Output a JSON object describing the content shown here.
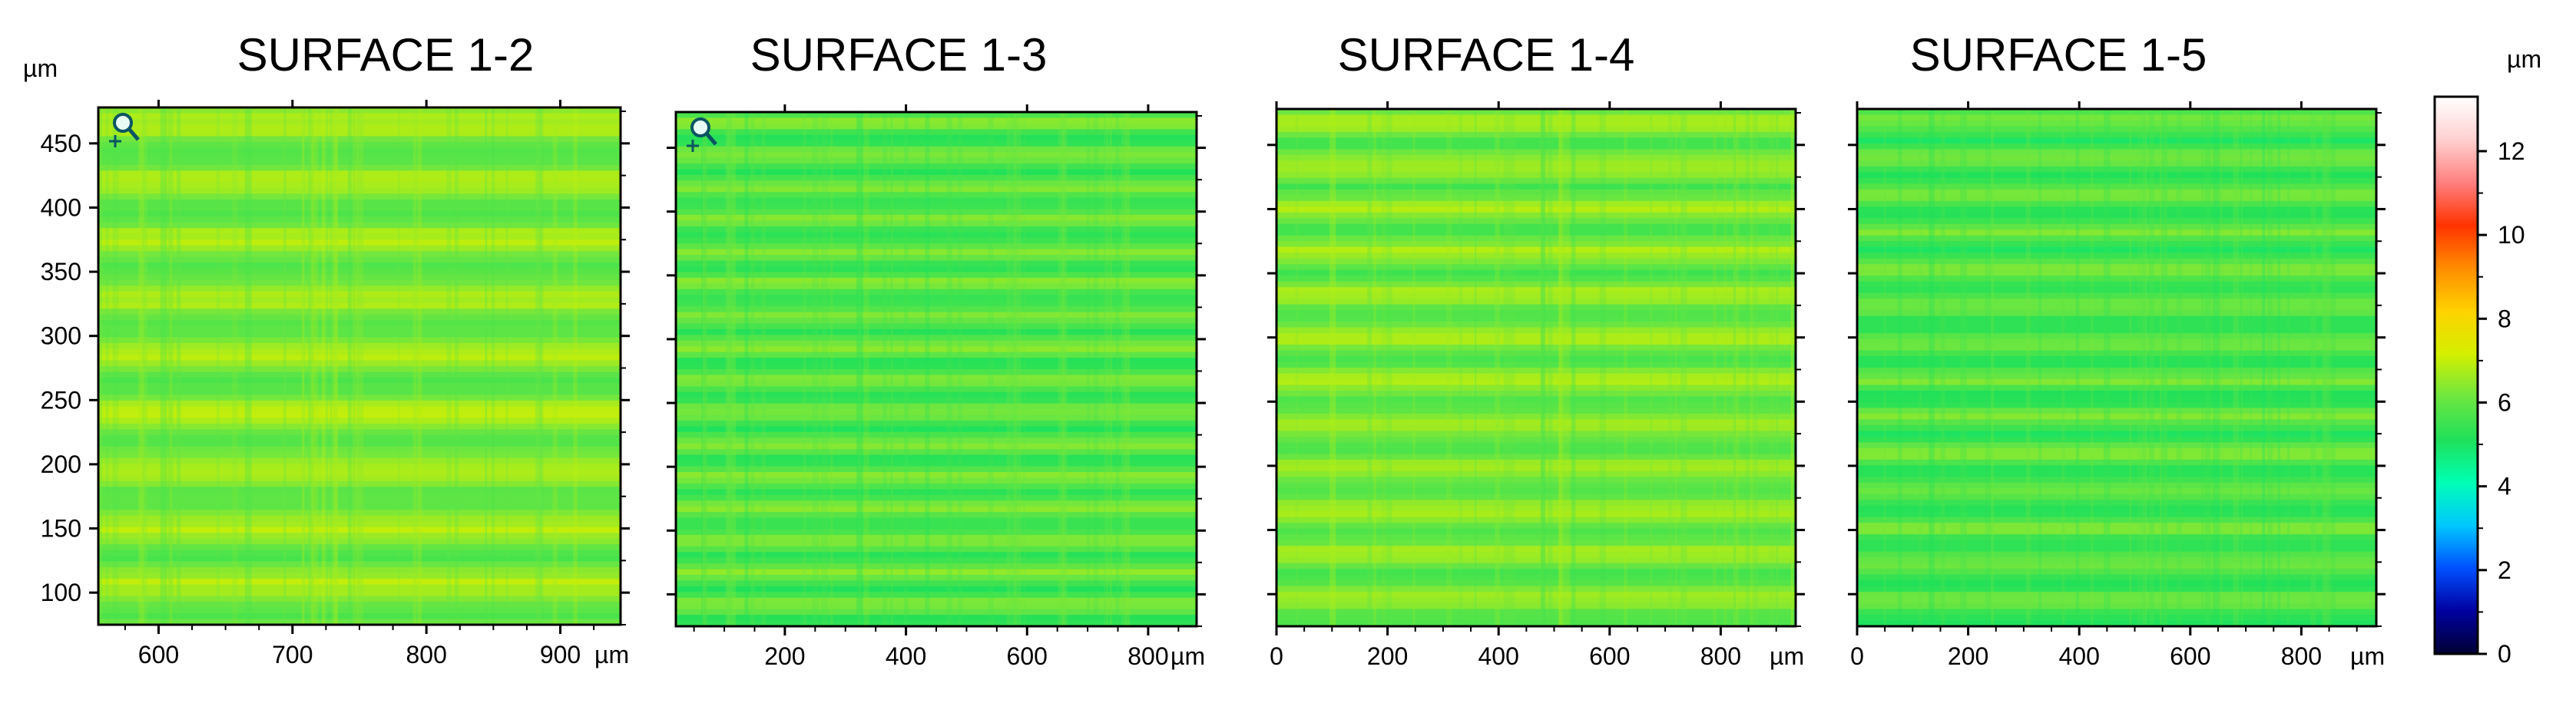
{
  "figure": {
    "left_axis_unit": "µm",
    "colorbar_unit": "µm"
  },
  "chart_data": [
    {
      "type": "heatmap",
      "title": "SURFACE 1-2",
      "x_unit": "µm",
      "y_unit": "µm",
      "xlim": [
        555,
        945
      ],
      "ylim": [
        75,
        478
      ],
      "x_ticks": [
        600,
        700,
        800,
        900
      ],
      "x_tick_labels": [
        "600",
        "700",
        "800",
        "900"
      ],
      "y_ticks": [
        100,
        150,
        200,
        250,
        300,
        350,
        400,
        450
      ],
      "y_tick_labels": [
        "100",
        "150",
        "200",
        "250",
        "300",
        "350",
        "400",
        "450"
      ],
      "base_height_um": 6.3,
      "stripe_count": 9,
      "has_zoom_tool": true
    },
    {
      "type": "heatmap",
      "title": "SURFACE 1-3",
      "x_unit": "µm",
      "xlim": [
        20,
        880
      ],
      "x_ticks": [
        200,
        400,
        600,
        800
      ],
      "x_tick_labels": [
        "200",
        "400",
        "600",
        "800"
      ],
      "base_height_um": 5.8,
      "stripe_count": 16,
      "has_zoom_tool": true
    },
    {
      "type": "heatmap",
      "title": "SURFACE 1-4",
      "x_unit": "µm",
      "xlim": [
        0,
        935
      ],
      "x_ticks": [
        0,
        200,
        400,
        600,
        800
      ],
      "x_tick_labels": [
        "0",
        "200",
        "400",
        "600",
        "800"
      ],
      "base_height_um": 6.2,
      "stripe_count": 12,
      "has_zoom_tool": false
    },
    {
      "type": "heatmap",
      "title": "SURFACE 1-5",
      "x_unit": "µm",
      "xlim": [
        0,
        935
      ],
      "x_ticks": [
        0,
        200,
        400,
        600,
        800
      ],
      "x_tick_labels": [
        "0",
        "200",
        "400",
        "600",
        "800"
      ],
      "base_height_um": 5.7,
      "stripe_count": 14,
      "has_zoom_tool": false
    }
  ],
  "colorbar": {
    "range": [
      0,
      13.3
    ],
    "ticks": [
      0,
      2,
      4,
      6,
      8,
      10,
      12
    ],
    "tick_labels": [
      "0",
      "2",
      "4",
      "6",
      "8",
      "10",
      "12"
    ],
    "colors": [
      "#000033",
      "#0000a0",
      "#0050ff",
      "#00c8ff",
      "#00ffb4",
      "#20e05a",
      "#6ee640",
      "#d4f000",
      "#ffd200",
      "#ff8c00",
      "#ff3300",
      "#ff8080",
      "#ffd0d0",
      "#ffffff"
    ]
  }
}
